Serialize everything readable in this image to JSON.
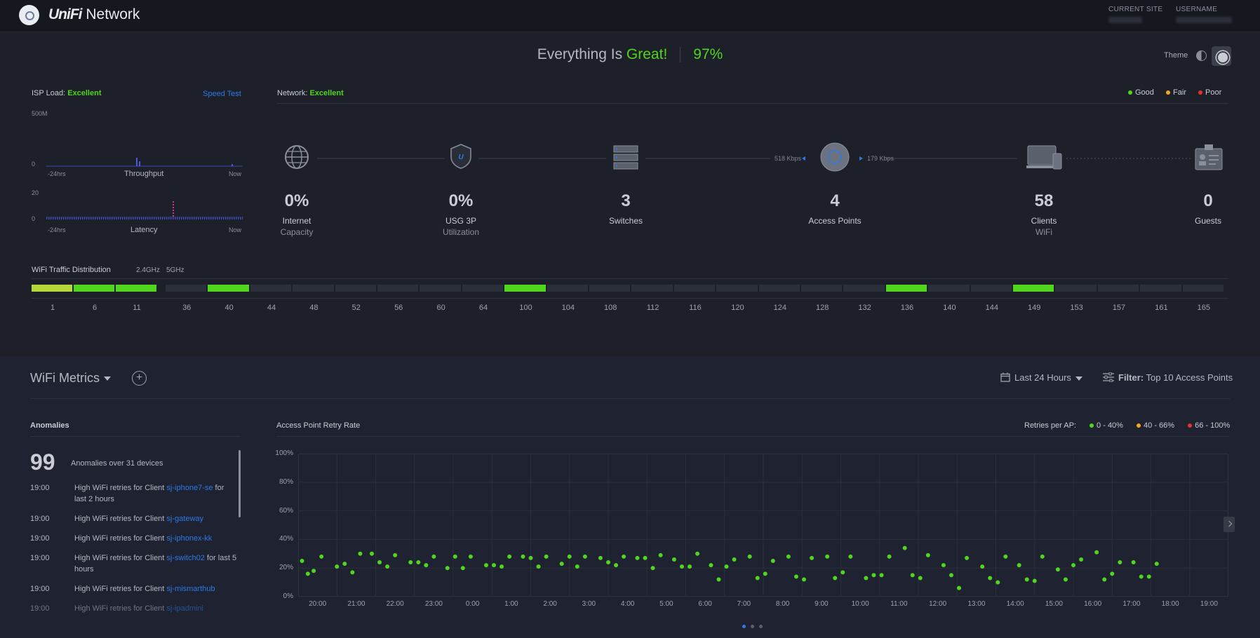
{
  "header": {
    "brand_unifi": "UniFi",
    "brand_network": "Network",
    "current_site_label": "CURRENT SITE",
    "username_label": "USERNAME"
  },
  "status": {
    "prefix": "Everything Is",
    "word": "Great!",
    "percent": "97%",
    "theme_label": "Theme"
  },
  "isp": {
    "label": "ISP Load:",
    "value": "Excellent",
    "speed_test": "Speed Test",
    "throughput_max": "500M",
    "throughput_min": "0",
    "throughput_title": "Throughput",
    "latency_max": "20",
    "latency_min": "0",
    "latency_title": "Latency",
    "start": "-24hrs",
    "end": "Now"
  },
  "network": {
    "label": "Network:",
    "value": "Excellent",
    "legend": [
      {
        "label": "Good",
        "color": "#4fd61d"
      },
      {
        "label": "Fair",
        "color": "#f5a623"
      },
      {
        "label": "Poor",
        "color": "#e8312f"
      }
    ],
    "down_rate": "518 Kbps",
    "up_rate": "179 Kbps",
    "nodes": [
      {
        "value": "0%",
        "label": "Internet",
        "sub": "Capacity",
        "icon": "globe-icon"
      },
      {
        "value": "0%",
        "label": "USG 3P",
        "sub": "Utilization",
        "icon": "shield-icon"
      },
      {
        "value": "3",
        "label": "Switches",
        "sub": "",
        "icon": "switch-stack-icon"
      },
      {
        "value": "4",
        "label": "Access Points",
        "sub": "",
        "icon": "access-point-icon"
      },
      {
        "value": "58",
        "label": "Clients",
        "sub": "WiFi",
        "icon": "laptop-icon"
      },
      {
        "value": "0",
        "label": "Guests",
        "sub": "",
        "icon": "guest-badge-icon"
      }
    ]
  },
  "wifi_dist": {
    "title": "WiFi Traffic Distribution",
    "band_24": "2.4GHz",
    "band_5": "5GHz",
    "channels_24": [
      "1",
      "6",
      "11"
    ],
    "channels_5": [
      "36",
      "40",
      "44",
      "48",
      "52",
      "56",
      "60",
      "64",
      "100",
      "104",
      "108",
      "112",
      "116",
      "120",
      "124",
      "128",
      "132",
      "136",
      "140",
      "144",
      "149",
      "153",
      "157",
      "161",
      "165"
    ],
    "active_24": {
      "1": "#b6d93a",
      "6": "#4fd61d",
      "11": "#4fd61d"
    },
    "active_5": {
      "40": "#4fd61d",
      "100": "#4fd61d",
      "136": "#4fd61d",
      "149": "#4fd61d"
    }
  },
  "metrics": {
    "title": "WiFi Metrics",
    "period": "Last 24 Hours",
    "filter_label": "Filter:",
    "filter_value": "Top 10 Access Points"
  },
  "anomalies": {
    "title": "Anomalies",
    "count": "99",
    "summary": "Anomalies over 31 devices",
    "items": [
      {
        "time": "19:00",
        "text": "High WiFi retries for Client ",
        "client": "sj-iphone7-se",
        "suffix": " for last 2 hours"
      },
      {
        "time": "19:00",
        "text": "High WiFi retries for Client ",
        "client": "sj-gateway",
        "suffix": ""
      },
      {
        "time": "19:00",
        "text": "High WiFi retries for Client ",
        "client": "sj-iphonex-kk",
        "suffix": ""
      },
      {
        "time": "19:00",
        "text": "High WiFi retries for Client ",
        "client": "sj-switch02",
        "suffix": " for last 5 hours"
      },
      {
        "time": "19:00",
        "text": "High WiFi retries for Client ",
        "client": "sj-mismarthub",
        "suffix": ""
      },
      {
        "time": "19:00",
        "text": "High WiFi retries for Client ",
        "client": "sj-ipadmini",
        "suffix": ""
      }
    ]
  },
  "retry": {
    "title": "Access Point Retry Rate",
    "legend_title": "Retries per AP:",
    "legend": [
      {
        "label": "0 - 40%",
        "color": "#4fd61d"
      },
      {
        "label": "40 - 66%",
        "color": "#f5a623"
      },
      {
        "label": "66 - 100%",
        "color": "#e8312f"
      }
    ]
  },
  "chart_data": {
    "type": "scatter",
    "title": "Access Point Retry Rate",
    "y_ticks": [
      "100%",
      "80%",
      "60%",
      "40%",
      "20%",
      "0%"
    ],
    "ylim": [
      0,
      100
    ],
    "categories": [
      "20:00",
      "21:00",
      "22:00",
      "23:00",
      "0:00",
      "1:00",
      "2:00",
      "3:00",
      "4:00",
      "5:00",
      "6:00",
      "7:00",
      "8:00",
      "9:00",
      "10:00",
      "11:00",
      "12:00",
      "13:00",
      "14:00",
      "15:00",
      "16:00",
      "17:00",
      "18:00",
      "19:00"
    ],
    "points": [
      [
        0.1,
        25
      ],
      [
        0.25,
        16
      ],
      [
        0.4,
        18
      ],
      [
        0.6,
        28
      ],
      [
        1.0,
        21
      ],
      [
        1.2,
        23
      ],
      [
        1.4,
        17
      ],
      [
        1.6,
        30
      ],
      [
        1.9,
        30
      ],
      [
        2.1,
        24
      ],
      [
        2.3,
        21
      ],
      [
        2.5,
        29
      ],
      [
        2.9,
        24
      ],
      [
        3.1,
        24
      ],
      [
        3.3,
        22
      ],
      [
        3.5,
        28
      ],
      [
        3.85,
        20
      ],
      [
        4.05,
        28
      ],
      [
        4.25,
        20
      ],
      [
        4.45,
        28
      ],
      [
        4.85,
        22
      ],
      [
        5.05,
        22
      ],
      [
        5.25,
        21
      ],
      [
        5.45,
        28
      ],
      [
        5.8,
        28
      ],
      [
        6.0,
        27
      ],
      [
        6.2,
        21
      ],
      [
        6.4,
        28
      ],
      [
        6.8,
        23
      ],
      [
        7.0,
        28
      ],
      [
        7.2,
        21
      ],
      [
        7.4,
        28
      ],
      [
        7.8,
        27
      ],
      [
        8.0,
        24
      ],
      [
        8.2,
        22
      ],
      [
        8.4,
        28
      ],
      [
        8.75,
        27
      ],
      [
        8.95,
        27
      ],
      [
        9.15,
        20
      ],
      [
        9.35,
        29
      ],
      [
        9.7,
        26
      ],
      [
        9.9,
        21
      ],
      [
        10.1,
        21
      ],
      [
        10.3,
        30
      ],
      [
        10.65,
        22
      ],
      [
        10.85,
        12
      ],
      [
        11.05,
        21
      ],
      [
        11.25,
        26
      ],
      [
        11.65,
        28
      ],
      [
        11.85,
        13
      ],
      [
        12.05,
        16
      ],
      [
        12.25,
        25
      ],
      [
        12.65,
        28
      ],
      [
        12.85,
        14
      ],
      [
        13.05,
        12
      ],
      [
        13.25,
        27
      ],
      [
        13.65,
        28
      ],
      [
        13.85,
        13
      ],
      [
        14.05,
        17
      ],
      [
        14.25,
        28
      ],
      [
        14.65,
        13
      ],
      [
        14.85,
        15
      ],
      [
        15.05,
        15
      ],
      [
        15.25,
        28
      ],
      [
        15.65,
        34
      ],
      [
        15.85,
        15
      ],
      [
        16.05,
        13
      ],
      [
        16.25,
        29
      ],
      [
        16.65,
        22
      ],
      [
        16.85,
        15
      ],
      [
        17.05,
        6
      ],
      [
        17.25,
        27
      ],
      [
        17.65,
        21
      ],
      [
        17.85,
        13
      ],
      [
        18.05,
        10
      ],
      [
        18.25,
        28
      ],
      [
        18.6,
        22
      ],
      [
        18.8,
        12
      ],
      [
        19.0,
        11
      ],
      [
        19.2,
        28
      ],
      [
        19.6,
        19
      ],
      [
        19.8,
        12
      ],
      [
        20.0,
        22
      ],
      [
        20.2,
        26
      ],
      [
        20.6,
        31
      ],
      [
        20.8,
        12
      ],
      [
        21.0,
        16
      ],
      [
        21.2,
        24
      ],
      [
        21.55,
        24
      ],
      [
        21.75,
        14
      ],
      [
        21.95,
        14
      ],
      [
        22.15,
        23
      ]
    ]
  }
}
